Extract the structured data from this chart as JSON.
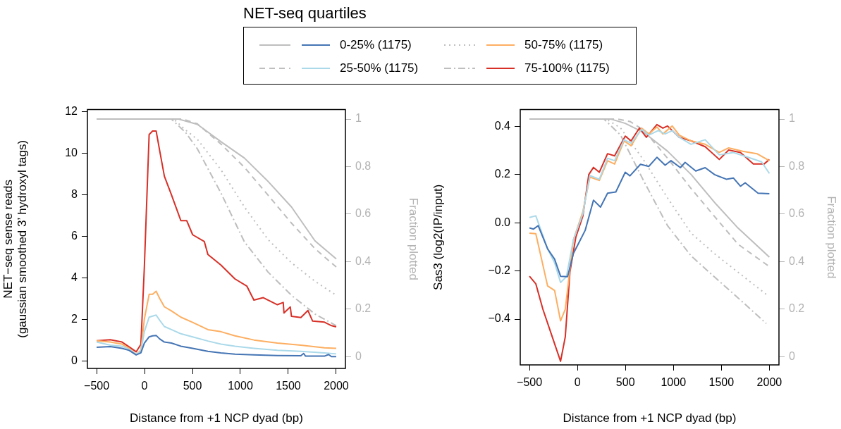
{
  "chart_data": [
    {
      "type": "line",
      "xlabel": "Distance from +1 NCP dyad (bp)",
      "ylabel": "NET−seq sense reads\n(gaussian smoothed 3’ hydroxyl tags)",
      "y2label": "Fraction plotted",
      "legend_title": "NET-seq quartiles",
      "legend": "top",
      "xlim": [
        -596,
        2096
      ],
      "xticks": [
        {
          "value": -500,
          "label": "−500"
        },
        0,
        500,
        1000,
        1500,
        2000
      ],
      "ylim": [
        -0.37,
        12.1
      ],
      "yticks": [
        0,
        2,
        4,
        6,
        8,
        10,
        12
      ],
      "y2lim": [
        -0.05,
        1.04
      ],
      "y2ticks": [
        0,
        0.2,
        0.4,
        0.6,
        0.8,
        1
      ],
      "series": [
        {
          "name": "0-25% (1175)",
          "color": "#4575b4",
          "line_style": "solid",
          "x": [
            -500,
            -358,
            -235,
            -161,
            -87,
            -38,
            -2,
            48,
            84,
            121,
            158,
            207,
            281,
            379,
            502,
            661,
            797,
            944,
            1141,
            1386,
            1631,
            1660,
            1680,
            1877,
            1920,
            1950,
            2000
          ],
          "values": [
            0.65,
            0.68,
            0.6,
            0.5,
            0.28,
            0.38,
            0.85,
            1.15,
            1.2,
            1.22,
            1.05,
            0.9,
            0.85,
            0.7,
            0.6,
            0.45,
            0.38,
            0.32,
            0.28,
            0.25,
            0.24,
            0.35,
            0.22,
            0.22,
            0.3,
            0.2,
            0.2
          ]
        },
        {
          "name": "25-50% (1175)",
          "color": "#abd9e9",
          "line_style": "solid",
          "x": [
            -500,
            -358,
            -235,
            -161,
            -87,
            -38,
            -2,
            48,
            84,
            121,
            158,
            207,
            281,
            379,
            502,
            661,
            797,
            944,
            1141,
            1386,
            1631,
            1877,
            2000
          ],
          "values": [
            0.9,
            0.75,
            0.7,
            0.55,
            0.3,
            0.45,
            1.4,
            2.1,
            2.15,
            2.2,
            1.95,
            1.65,
            1.5,
            1.3,
            1.15,
            0.95,
            0.8,
            0.7,
            0.6,
            0.5,
            0.45,
            0.38,
            0.33
          ]
        },
        {
          "name": "50-75% (1175)",
          "color": "#fdae61",
          "line_style": "solid",
          "x": [
            -500,
            -358,
            -235,
            -161,
            -87,
            -38,
            -2,
            48,
            84,
            121,
            158,
            207,
            281,
            379,
            502,
            661,
            797,
            944,
            1141,
            1386,
            1631,
            1877,
            2000
          ],
          "values": [
            0.96,
            0.9,
            0.8,
            0.6,
            0.3,
            0.5,
            2.0,
            3.2,
            3.2,
            3.35,
            3.0,
            2.6,
            2.4,
            2.1,
            1.85,
            1.5,
            1.4,
            1.2,
            1.0,
            0.85,
            0.75,
            0.62,
            0.6
          ]
        },
        {
          "name": "75-100% (1175)",
          "color": "#d73027",
          "line_style": "solid",
          "x": [
            -500,
            -358,
            -235,
            -161,
            -87,
            -38,
            -2,
            48,
            84,
            121,
            158,
            207,
            281,
            379,
            440,
            502,
            624,
            661,
            797,
            944,
            1067,
            1141,
            1239,
            1386,
            1447,
            1455,
            1521,
            1533,
            1631,
            1705,
            1754,
            1877,
            1951,
            2000
          ],
          "values": [
            0.96,
            1.01,
            0.9,
            0.67,
            0.43,
            0.79,
            4.5,
            10.9,
            11.07,
            11.07,
            10.12,
            8.89,
            7.99,
            6.75,
            6.75,
            6.07,
            5.74,
            5.12,
            4.61,
            3.94,
            3.6,
            2.92,
            3.04,
            2.7,
            2.81,
            2.3,
            2.59,
            2.14,
            2.08,
            2.42,
            1.91,
            1.86,
            1.69,
            1.63
          ]
        },
        {
          "color": "#bebebe",
          "line_style": "solid",
          "axis": "y2",
          "x": [
            -500,
            355,
            551,
            797,
            1042,
            1288,
            1533,
            1779,
            2000
          ],
          "values": [
            1,
            1,
            0.978,
            0.905,
            0.836,
            0.738,
            0.63,
            0.487,
            0.411
          ]
        },
        {
          "color": "#bebebe",
          "line_style": "dashed",
          "axis": "y2",
          "x": [
            -500,
            400,
            551,
            797,
            1042,
            1288,
            1533,
            1779,
            2000
          ],
          "values": [
            1,
            1,
            0.98,
            0.895,
            0.797,
            0.68,
            0.562,
            0.454,
            0.377
          ]
        },
        {
          "color": "#bebebe",
          "line_style": "dotted",
          "axis": "y2",
          "x": [
            -500,
            305,
            428,
            551,
            797,
            1042,
            1288,
            1533,
            1779,
            2000
          ],
          "values": [
            1,
            1,
            0.954,
            0.915,
            0.787,
            0.63,
            0.493,
            0.395,
            0.317,
            0.258
          ]
        },
        {
          "color": "#bebebe",
          "line_style": "dashdot",
          "axis": "y2",
          "x": [
            -500,
            280,
            428,
            551,
            797,
            1042,
            1288,
            1533,
            1779,
            2000
          ],
          "values": [
            1,
            1,
            0.944,
            0.875,
            0.689,
            0.483,
            0.356,
            0.258,
            0.179,
            0.13
          ]
        }
      ]
    },
    {
      "type": "line",
      "xlabel": "Distance from +1 NCP dyad (bp)",
      "ylabel": "Sas3 (log2(IP/input)",
      "y2label": "Fraction plotted",
      "xlim": [
        -596,
        2100
      ],
      "xticks": [
        {
          "value": -500,
          "label": "−500"
        },
        0,
        500,
        1000,
        1500,
        2000
      ],
      "ylim": [
        -0.59,
        0.47
      ],
      "yticks": [
        {
          "value": -0.4,
          "label": "−0.4"
        },
        {
          "value": -0.2,
          "label": "−0.2"
        },
        {
          "value": 0,
          "label": "0.0"
        },
        0.2,
        0.4
      ],
      "y2lim": [
        -0.035,
        1.04
      ],
      "y2ticks": [
        0,
        0.2,
        0.4,
        0.6,
        0.8,
        1
      ],
      "series": [
        {
          "color": "#4575b4",
          "line_style": "solid",
          "x": [
            -500,
            -458,
            -409,
            -311,
            -238,
            -176,
            -103,
            -42,
            7,
            81,
            167,
            240,
            314,
            400,
            498,
            547,
            657,
            743,
            828,
            914,
            975,
            1073,
            1122,
            1233,
            1331,
            1429,
            1551,
            1625,
            1699,
            1748,
            1882,
            2000
          ],
          "values": [
            -0.021,
            -0.026,
            -0.012,
            -0.108,
            -0.151,
            -0.222,
            -0.224,
            -0.127,
            -0.089,
            -0.031,
            0.094,
            0.065,
            0.123,
            0.128,
            0.21,
            0.195,
            0.243,
            0.234,
            0.272,
            0.239,
            0.258,
            0.229,
            0.251,
            0.215,
            0.229,
            0.2,
            0.181,
            0.186,
            0.152,
            0.166,
            0.123,
            0.121
          ]
        },
        {
          "color": "#abd9e9",
          "line_style": "solid",
          "x": [
            -500,
            -434,
            -311,
            -238,
            -176,
            -115,
            -42,
            56,
            130,
            228,
            314,
            387,
            486,
            559,
            670,
            743,
            841,
            914,
            988,
            1061,
            1184,
            1331,
            1478,
            1625,
            1772,
            1919,
            2000
          ],
          "values": [
            0.022,
            0.029,
            -0.108,
            -0.166,
            -0.248,
            -0.224,
            -0.07,
            0.037,
            0.196,
            0.181,
            0.268,
            0.258,
            0.345,
            0.33,
            0.388,
            0.364,
            0.383,
            0.369,
            0.383,
            0.355,
            0.326,
            0.345,
            0.282,
            0.292,
            0.273,
            0.253,
            0.205
          ]
        },
        {
          "color": "#fdae61",
          "line_style": "solid",
          "x": [
            -500,
            -434,
            -311,
            -238,
            -176,
            -127,
            -42,
            56,
            130,
            228,
            314,
            387,
            486,
            559,
            670,
            743,
            828,
            890,
            988,
            1061,
            1184,
            1331,
            1478,
            1576,
            1723,
            1870,
            2000
          ],
          "values": [
            -0.043,
            -0.045,
            -0.262,
            -0.281,
            -0.407,
            -0.359,
            -0.07,
            0.046,
            0.19,
            0.176,
            0.258,
            0.244,
            0.34,
            0.32,
            0.393,
            0.369,
            0.398,
            0.369,
            0.402,
            0.364,
            0.34,
            0.326,
            0.292,
            0.311,
            0.297,
            0.287,
            0.258
          ]
        },
        {
          "color": "#d73027",
          "line_style": "solid",
          "x": [
            -500,
            -434,
            -360,
            -262,
            -176,
            -127,
            -78,
            -17,
            56,
            118,
            167,
            228,
            314,
            387,
            498,
            559,
            645,
            718,
            828,
            890,
            939,
            1061,
            1184,
            1331,
            1478,
            1576,
            1699,
            1833,
            1944,
            2000
          ],
          "values": [
            -0.222,
            -0.253,
            -0.359,
            -0.474,
            -0.575,
            -0.474,
            -0.204,
            -0.06,
            0.027,
            0.2,
            0.23,
            0.21,
            0.287,
            0.278,
            0.36,
            0.34,
            0.393,
            0.355,
            0.408,
            0.393,
            0.402,
            0.355,
            0.34,
            0.316,
            0.263,
            0.302,
            0.292,
            0.244,
            0.244,
            0.263
          ]
        },
        {
          "color": "#bebebe",
          "line_style": "solid",
          "axis": "y2",
          "x": [
            -500,
            350,
            498,
            694,
            939,
            1184,
            1429,
            1674,
            2000
          ],
          "values": [
            1,
            1,
            0.982,
            0.943,
            0.865,
            0.767,
            0.649,
            0.541,
            0.419
          ]
        },
        {
          "color": "#bebebe",
          "line_style": "dashed",
          "axis": "y2",
          "x": [
            -500,
            420,
            547,
            694,
            939,
            1184,
            1429,
            1674,
            2000
          ],
          "values": [
            1,
            1,
            0.99,
            0.953,
            0.835,
            0.708,
            0.59,
            0.473,
            0.379
          ]
        },
        {
          "color": "#bebebe",
          "line_style": "dotted",
          "axis": "y2",
          "x": [
            -500,
            301,
            449,
            694,
            939,
            1184,
            1429,
            1674,
            1968
          ],
          "values": [
            1,
            1,
            0.963,
            0.825,
            0.668,
            0.52,
            0.433,
            0.355,
            0.262
          ]
        },
        {
          "color": "#bebebe",
          "line_style": "dashdot",
          "axis": "y2",
          "x": [
            -500,
            277,
            449,
            694,
            939,
            1184,
            1429,
            1674,
            1968
          ],
          "values": [
            1,
            1,
            0.933,
            0.737,
            0.551,
            0.424,
            0.335,
            0.247,
            0.139
          ]
        }
      ]
    }
  ]
}
